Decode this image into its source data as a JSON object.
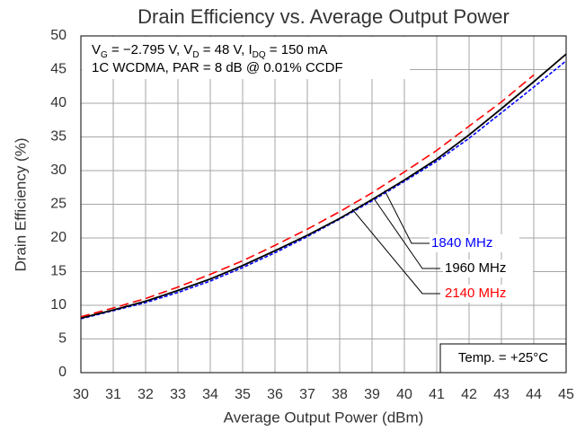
{
  "chart_data": {
    "type": "line",
    "title": "Drain Efficiency vs. Average Output Power",
    "xlabel": "Average Output Power (dBm)",
    "ylabel": "Drain Efficiency (%)",
    "x": [
      30,
      31,
      32,
      33,
      34,
      35,
      36,
      37,
      38,
      39,
      40,
      41,
      42,
      43,
      44,
      45
    ],
    "series": [
      {
        "name": "1840 MHz",
        "color": "#0000ff",
        "dash": true,
        "values": [
          8.0,
          9.2,
          10.4,
          11.9,
          13.6,
          15.6,
          17.8,
          20.2,
          22.8,
          25.5,
          28.4,
          31.4,
          34.8,
          38.6,
          42.4,
          46.3
        ]
      },
      {
        "name": "1960 MHz",
        "color": "#000000",
        "dash": false,
        "values": [
          8.1,
          9.3,
          10.6,
          12.2,
          13.9,
          15.9,
          18.1,
          20.4,
          22.9,
          25.7,
          28.6,
          31.7,
          35.3,
          39.2,
          43.2,
          47.3
        ]
      },
      {
        "name": "2140 MHz",
        "color": "#ff0000",
        "dash": true,
        "values": [
          8.3,
          9.6,
          11.0,
          12.7,
          14.6,
          16.6,
          18.9,
          21.3,
          23.9,
          26.7,
          29.8,
          33.0,
          36.6,
          40.2,
          44.2,
          null
        ]
      }
    ],
    "xlim": [
      30,
      45
    ],
    "xticks": [
      30,
      31,
      32,
      33,
      34,
      35,
      36,
      37,
      38,
      39,
      40,
      41,
      42,
      43,
      44,
      45
    ],
    "ylim": [
      0,
      50
    ],
    "yticks": [
      0,
      5,
      10,
      15,
      20,
      25,
      30,
      35,
      40,
      45,
      50
    ],
    "grid": true,
    "conditions": [
      [
        {
          "text": "V"
        },
        {
          "text": "G",
          "sub": true
        },
        {
          "text": " = −2.795 V, V"
        },
        {
          "text": "D",
          "sub": true
        },
        {
          "text": " = 48 V, I"
        },
        {
          "text": "DQ",
          "sub": true
        },
        {
          "text": " = 150 mA"
        }
      ],
      [
        {
          "text": "1C WCDMA, PAR = 8 dB @ 0.01% CCDF"
        }
      ]
    ],
    "temperature_note": "Temp. = +25°C"
  }
}
